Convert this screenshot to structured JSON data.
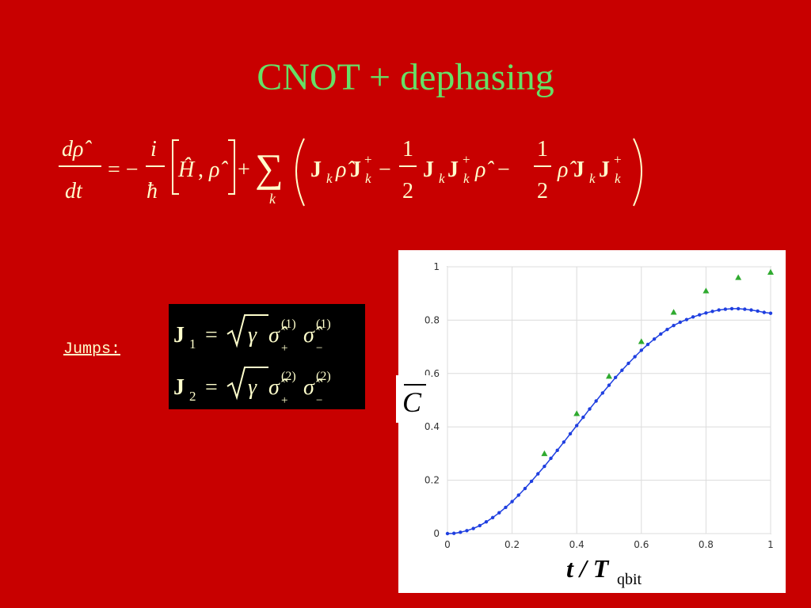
{
  "slide": {
    "title": "CNOT +  dephasing",
    "jumps_label": "Jumps:"
  },
  "equation": {
    "lhs_num": "dρ̂",
    "lhs_den": "dt",
    "eq_minus": "= −",
    "frac_i": "i",
    "frac_hbar": "ħ",
    "comm_H": "Ĥ",
    "comm_sep": ",",
    "comm_rho": "ρ̂",
    "plus": "+",
    "sigma": "∑",
    "sum_index": "k",
    "term1": "J",
    "k": "k",
    "dag": "+",
    "rho": "ρ̂",
    "minus": "−",
    "half_num": "1",
    "half_den": "2"
  },
  "jumps": [
    {
      "J": "J",
      "index": "1",
      "eq": "=",
      "sqrt_body": "γ",
      "sig": "σ̂",
      "plus": "+",
      "minus": "−",
      "sup": "(1)"
    },
    {
      "J": "J",
      "index": "2",
      "eq": "=",
      "sqrt_body": "γ",
      "sig": "σ̂",
      "plus": "+",
      "minus": "−",
      "sup": "(2)"
    }
  ],
  "chart_data": {
    "type": "scatter",
    "xlabel": "t / T",
    "xlabel_sub": "qbit",
    "ylabel": "C",
    "xlim": [
      0,
      1
    ],
    "ylim": [
      0,
      1
    ],
    "xticks": [
      "0",
      "0.2",
      "0.4",
      "0.6",
      "0.8",
      "1"
    ],
    "yticks": [
      "0",
      "0.2",
      "0.4",
      "0.6",
      "0.8",
      "1"
    ],
    "grid": true,
    "series": [
      {
        "marker": "triangle",
        "color": "#2faa2f",
        "x": [
          0.3,
          0.4,
          0.5,
          0.6,
          0.7,
          0.8,
          0.9,
          1.0
        ],
        "y": [
          0.3,
          0.45,
          0.59,
          0.72,
          0.83,
          0.91,
          0.96,
          0.98
        ]
      },
      {
        "marker": "dotted-line",
        "color": "#1f3fe0",
        "x": [
          0,
          0.02,
          0.04,
          0.06,
          0.08,
          0.1,
          0.12,
          0.14,
          0.16,
          0.18,
          0.2,
          0.22,
          0.24,
          0.26,
          0.28,
          0.3,
          0.32,
          0.34,
          0.36,
          0.38,
          0.4,
          0.42,
          0.44,
          0.46,
          0.48,
          0.5,
          0.52,
          0.54,
          0.56,
          0.58,
          0.6,
          0.62,
          0.64,
          0.66,
          0.68,
          0.7,
          0.72,
          0.74,
          0.76,
          0.78,
          0.8,
          0.82,
          0.84,
          0.86,
          0.88,
          0.9,
          0.92,
          0.94,
          0.96,
          0.98,
          1.0
        ],
        "y": [
          0.0,
          0.001,
          0.005,
          0.011,
          0.019,
          0.03,
          0.044,
          0.06,
          0.078,
          0.098,
          0.12,
          0.144,
          0.169,
          0.196,
          0.224,
          0.252,
          0.282,
          0.312,
          0.343,
          0.374,
          0.405,
          0.436,
          0.467,
          0.497,
          0.527,
          0.556,
          0.585,
          0.612,
          0.638,
          0.663,
          0.687,
          0.709,
          0.729,
          0.748,
          0.765,
          0.78,
          0.792,
          0.802,
          0.812,
          0.82,
          0.827,
          0.833,
          0.838,
          0.841,
          0.843,
          0.843,
          0.841,
          0.838,
          0.834,
          0.829,
          0.826
        ]
      }
    ]
  }
}
